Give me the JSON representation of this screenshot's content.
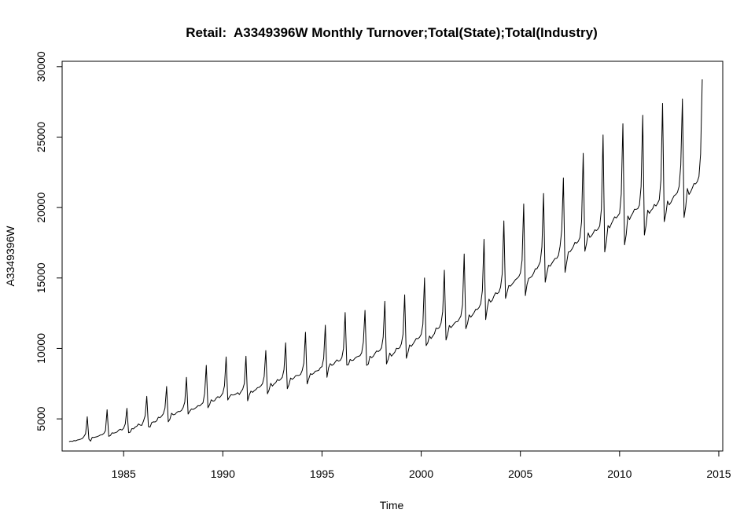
{
  "chart_data": {
    "type": "line",
    "title": "Retail:  A3349396W Monthly Turnover;Total(State);Total(Industry)",
    "xlabel": "Time",
    "ylabel": "A3349396W",
    "xlim": [
      1981.9,
      2015.2
    ],
    "ylim": [
      2720,
      30380
    ],
    "x_ticks": [
      1985,
      1990,
      1995,
      2000,
      2005,
      2010,
      2015
    ],
    "y_ticks": [
      5000,
      10000,
      15000,
      20000,
      25000,
      30000
    ],
    "start": 1982.25,
    "frequency": 12,
    "grid": false,
    "legend": "none",
    "line_color": "#000000",
    "series": [
      {
        "values": [
          3380,
          3420,
          3400,
          3460,
          3440,
          3500,
          3520,
          3560,
          3610,
          3750,
          3950,
          5150,
          3560,
          3420,
          3690,
          3680,
          3710,
          3740,
          3790,
          3860,
          3880,
          3960,
          4160,
          5650,
          3760,
          3820,
          4010,
          3990,
          4020,
          4070,
          4200,
          4260,
          4210,
          4340,
          4640,
          5750,
          4020,
          4060,
          4310,
          4290,
          4420,
          4480,
          4640,
          4560,
          4540,
          4840,
          5220,
          6600,
          4450,
          4420,
          4740,
          4790,
          4780,
          4860,
          5120,
          5080,
          5200,
          5360,
          5760,
          7300,
          4790,
          4980,
          5400,
          5290,
          5310,
          5440,
          5530,
          5520,
          5600,
          5800,
          6200,
          7950,
          5340,
          5540,
          5700,
          5670,
          5730,
          5820,
          5940,
          5920,
          6030,
          6140,
          6800,
          8800,
          5790,
          6010,
          6360,
          6260,
          6290,
          6470,
          6580,
          6510,
          6650,
          6830,
          7350,
          9400,
          6340,
          6560,
          6720,
          6690,
          6710,
          6770,
          6860,
          6730,
          6930,
          7100,
          7500,
          9450,
          6280,
          6700,
          6970,
          6880,
          7000,
          7080,
          7220,
          7240,
          7340,
          7500,
          8000,
          9850,
          6780,
          7060,
          7520,
          7330,
          7480,
          7570,
          7790,
          7720,
          7810,
          7960,
          8500,
          10400,
          7140,
          7430,
          7900,
          7810,
          7900,
          8060,
          8090,
          8080,
          8150,
          8430,
          8950,
          11150,
          7480,
          7850,
          8210,
          8150,
          8240,
          8390,
          8410,
          8440,
          8630,
          8710,
          9300,
          11650,
          7950,
          8640,
          8920,
          8800,
          8870,
          9040,
          9190,
          9100,
          9150,
          9350,
          10000,
          12550,
          8820,
          8850,
          9220,
          9140,
          9170,
          9310,
          9400,
          9440,
          9480,
          9700,
          10450,
          12700,
          8800,
          8890,
          9450,
          9340,
          9440,
          9640,
          9820,
          9780,
          9860,
          10050,
          10800,
          13350,
          8900,
          9220,
          9670,
          9450,
          9590,
          9730,
          10010,
          9980,
          10040,
          10330,
          11000,
          13800,
          9300,
          9720,
          10250,
          10150,
          10310,
          10500,
          10710,
          10690,
          10790,
          11000,
          11700,
          15000,
          10200,
          10410,
          10880,
          10700,
          10880,
          11050,
          11450,
          11400,
          11490,
          11800,
          12600,
          15550,
          10600,
          11010,
          11630,
          11480,
          11610,
          11780,
          11890,
          11900,
          12090,
          12300,
          13100,
          16700,
          11400,
          11760,
          12380,
          12220,
          12370,
          12550,
          12780,
          12770,
          12910,
          13180,
          14100,
          17750,
          12050,
          12890,
          13500,
          13290,
          13420,
          13720,
          13950,
          13890,
          13990,
          14350,
          15300,
          19050,
          13550,
          14010,
          14470,
          14420,
          14560,
          14710,
          14880,
          14970,
          15090,
          15350,
          16250,
          20250,
          13750,
          14540,
          14970,
          15030,
          15120,
          15340,
          15650,
          15650,
          15880,
          16150,
          17200,
          21000,
          14700,
          15330,
          15900,
          15840,
          16030,
          16220,
          16390,
          16400,
          16600,
          17250,
          18400,
          22100,
          15400,
          16110,
          16840,
          16860,
          17020,
          17230,
          17530,
          17470,
          17600,
          17870,
          19000,
          23850,
          16900,
          17440,
          18200,
          17880,
          17990,
          18180,
          18420,
          18360,
          18480,
          18700,
          19900,
          25150,
          16850,
          17600,
          18720,
          18560,
          18840,
          19090,
          19340,
          19260,
          19420,
          19590,
          20950,
          25950,
          17350,
          18080,
          19400,
          19140,
          19410,
          19610,
          19880,
          19870,
          19920,
          20170,
          21500,
          26550,
          18050,
          18720,
          19810,
          19590,
          19790,
          19920,
          20220,
          20110,
          20300,
          20550,
          21950,
          27400,
          19000,
          19560,
          20460,
          20190,
          20350,
          20610,
          20840,
          20920,
          21080,
          21500,
          23000,
          27700,
          19300,
          20060,
          21350,
          20930,
          21120,
          21390,
          21700,
          21680,
          21840,
          22200,
          23800,
          29100
        ]
      }
    ]
  }
}
